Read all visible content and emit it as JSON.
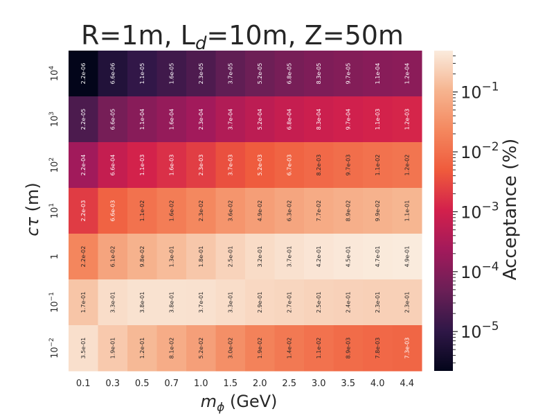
{
  "chart_data": {
    "type": "heatmap",
    "title_main": "R=1m, L",
    "title_sub": "d",
    "title_rest": "=10m, Z=50m",
    "xlabel_symbol": "m",
    "xlabel_sub": "ϕ",
    "xlabel_unit": " (GeV)",
    "ylabel_symbol": "cτ",
    "ylabel_unit": " (m)",
    "colorbar_label": "Acceptance (%)",
    "x_categories": [
      "0.1",
      "0.3",
      "0.5",
      "0.7",
      "1.0",
      "1.5",
      "2.0",
      "2.5",
      "3.0",
      "3.5",
      "4.0",
      "4.4"
    ],
    "y_categories": [
      {
        "base": "10",
        "exp": "4"
      },
      {
        "base": "10",
        "exp": "3"
      },
      {
        "base": "10",
        "exp": "2"
      },
      {
        "base": "10",
        "exp": "1"
      },
      {
        "base": "1",
        "exp": ""
      },
      {
        "base": "10",
        "exp": "−1"
      },
      {
        "base": "10",
        "exp": "−2"
      }
    ],
    "values": [
      [
        "2.2e-06",
        "6.6e-06",
        "1.1e-05",
        "1.6e-05",
        "2.3e-05",
        "3.7e-05",
        "5.2e-05",
        "6.8e-05",
        "8.3e-05",
        "9.7e-05",
        "1.1e-04",
        "1.2e-04"
      ],
      [
        "2.2e-05",
        "6.6e-05",
        "1.1e-04",
        "1.6e-04",
        "2.3e-04",
        "3.7e-04",
        "5.2e-04",
        "6.8e-04",
        "8.3e-04",
        "9.7e-04",
        "1.1e-03",
        "1.2e-03"
      ],
      [
        "2.2e-04",
        "6.6e-04",
        "1.1e-03",
        "1.6e-03",
        "2.3e-03",
        "3.7e-03",
        "5.2e-03",
        "6.7e-03",
        "8.2e-03",
        "9.7e-03",
        "1.1e-02",
        "1.2e-02"
      ],
      [
        "2.2e-03",
        "6.6e-03",
        "1.1e-02",
        "1.6e-02",
        "2.3e-02",
        "3.6e-02",
        "4.9e-02",
        "6.3e-02",
        "7.7e-02",
        "8.9e-02",
        "9.9e-02",
        "1.1e-01"
      ],
      [
        "2.2e-02",
        "6.1e-02",
        "9.8e-02",
        "1.3e-01",
        "1.8e-01",
        "2.5e-01",
        "3.2e-01",
        "3.7e-01",
        "4.2e-01",
        "4.5e-01",
        "4.7e-01",
        "4.9e-01"
      ],
      [
        "1.7e-01",
        "3.3e-01",
        "3.8e-01",
        "3.8e-01",
        "3.7e-01",
        "3.3e-01",
        "2.9e-01",
        "2.7e-01",
        "2.5e-01",
        "2.4e-01",
        "2.3e-01",
        "2.3e-01"
      ],
      [
        "3.5e-01",
        "1.9e-01",
        "1.2e-01",
        "8.1e-02",
        "5.2e-02",
        "3.0e-02",
        "1.9e-02",
        "1.4e-02",
        "1.1e-02",
        "8.9e-03",
        "7.8e-03",
        "7.3e-03"
      ]
    ],
    "colorbar": {
      "scale": "log",
      "range": [
        2.2e-06,
        0.49
      ],
      "ticks": [
        {
          "value": 1e-05,
          "base": "10",
          "exp": "−5"
        },
        {
          "value": 0.0001,
          "base": "10",
          "exp": "−4"
        },
        {
          "value": 0.001,
          "base": "10",
          "exp": "−3"
        },
        {
          "value": 0.01,
          "base": "10",
          "exp": "−2"
        },
        {
          "value": 0.1,
          "base": "10",
          "exp": "−1"
        }
      ],
      "colormap": "rocket",
      "colormap_stops": [
        "#03051a",
        "#2f1747",
        "#6a1f56",
        "#a11a5b",
        "#d2204c",
        "#ef5a3c",
        "#f4875e",
        "#f6b48f",
        "#faebdd"
      ]
    },
    "grid": false
  }
}
